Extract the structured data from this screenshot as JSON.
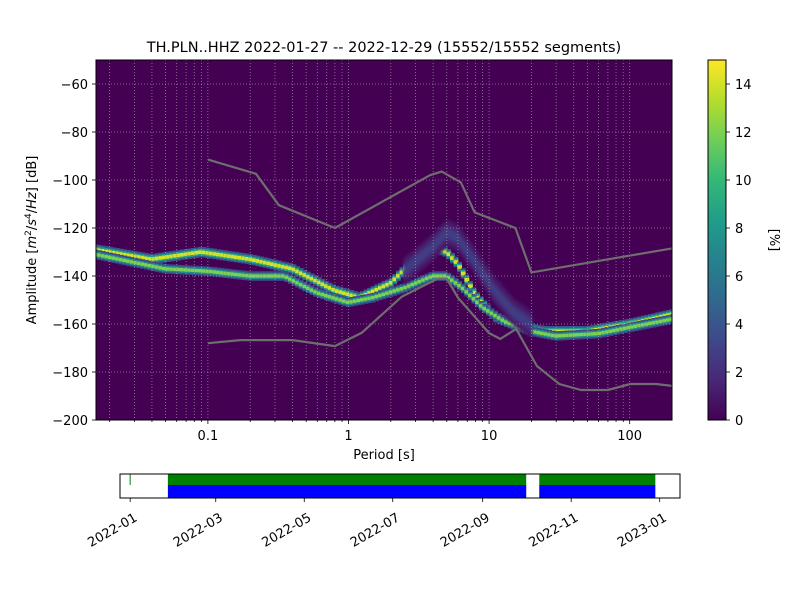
{
  "chart_data": {
    "type": "heatmap",
    "title": "TH.PLN..HHZ   2022-01-27 -- 2022-12-29  (15552/15552 segments)",
    "xlabel": "Period [s]",
    "ylabel_parts": [
      "Amplitude [",
      "m",
      "2",
      "/",
      "s",
      "4",
      "/",
      "Hz",
      "] [dB]"
    ],
    "x_scale": "log",
    "xlim": [
      0.016,
      200
    ],
    "ylim": [
      -200,
      -50
    ],
    "x_ticks": [
      {
        "v": 0.1,
        "label": "0.1"
      },
      {
        "v": 1,
        "label": "1"
      },
      {
        "v": 10,
        "label": "10"
      },
      {
        "v": 100,
        "label": "100"
      }
    ],
    "y_ticks": [
      {
        "v": -60,
        "label": "−60"
      },
      {
        "v": -80,
        "label": "−80"
      },
      {
        "v": -100,
        "label": "−100"
      },
      {
        "v": -120,
        "label": "−120"
      },
      {
        "v": -140,
        "label": "−140"
      },
      {
        "v": -160,
        "label": "−160"
      },
      {
        "v": -180,
        "label": "−180"
      },
      {
        "v": -200,
        "label": "−200"
      }
    ],
    "grid": true,
    "background_color": "#440154",
    "noise_model_color": "#6e6e6e",
    "colorbar": {
      "label": "[%]",
      "range": [
        0,
        15
      ],
      "ticks": [
        {
          "v": 0,
          "label": "0"
        },
        {
          "v": 2,
          "label": "2"
        },
        {
          "v": 4,
          "label": "4"
        },
        {
          "v": 6,
          "label": "6"
        },
        {
          "v": 8,
          "label": "8"
        },
        {
          "v": 10,
          "label": "10"
        },
        {
          "v": 12,
          "label": "12"
        },
        {
          "v": 14,
          "label": "14"
        }
      ],
      "colors": [
        "#440154",
        "#482878",
        "#3e4989",
        "#31688e",
        "#26828e",
        "#1f9e89",
        "#35b779",
        "#6ece58",
        "#b5de2b",
        "#fde725"
      ]
    },
    "high_noise_model": [
      [
        0.1,
        -91.5
      ],
      [
        0.22,
        -97.4
      ],
      [
        0.32,
        -110.5
      ],
      [
        0.8,
        -120
      ],
      [
        3.8,
        -98
      ],
      [
        4.6,
        -96.5
      ],
      [
        6.3,
        -101
      ],
      [
        7.9,
        -113.5
      ],
      [
        15.4,
        -120
      ],
      [
        20,
        -138.5
      ],
      [
        200,
        -128.5
      ]
    ],
    "low_noise_model": [
      [
        0.1,
        -168
      ],
      [
        0.17,
        -166.7
      ],
      [
        0.4,
        -166.7
      ],
      [
        0.8,
        -169.2
      ],
      [
        1.24,
        -163.7
      ],
      [
        2.4,
        -148.6
      ],
      [
        4.3,
        -141.1
      ],
      [
        5,
        -141.1
      ],
      [
        6,
        -149
      ],
      [
        10,
        -163.8
      ],
      [
        12,
        -166.2
      ],
      [
        15.6,
        -162.1
      ],
      [
        21.9,
        -177.5
      ],
      [
        31.6,
        -185
      ],
      [
        45,
        -187.5
      ],
      [
        70,
        -187.5
      ],
      [
        101,
        -185
      ],
      [
        154,
        -185
      ],
      [
        200,
        -185.8
      ]
    ],
    "modes": [
      {
        "name": "upper",
        "points": [
          [
            0.016,
            -129
          ],
          [
            0.04,
            -133
          ],
          [
            0.09,
            -130
          ],
          [
            0.2,
            -133
          ],
          [
            0.4,
            -137
          ],
          [
            0.8,
            -146
          ],
          [
            1.2,
            -149
          ],
          [
            2,
            -143
          ],
          [
            3,
            -133
          ],
          [
            4,
            -128
          ],
          [
            5,
            -130
          ],
          [
            6,
            -135
          ],
          [
            8,
            -148
          ],
          [
            11,
            -157
          ],
          [
            16,
            -161
          ],
          [
            25,
            -163
          ],
          [
            50,
            -163
          ],
          [
            100,
            -160
          ],
          [
            200,
            -156
          ]
        ],
        "width": 5.5,
        "intensity": 14
      },
      {
        "name": "lower",
        "points": [
          [
            0.016,
            -131
          ],
          [
            0.05,
            -137
          ],
          [
            0.1,
            -138
          ],
          [
            0.2,
            -140
          ],
          [
            0.35,
            -140
          ],
          [
            0.6,
            -147
          ],
          [
            1,
            -151
          ],
          [
            1.5,
            -149
          ],
          [
            2.5,
            -145
          ],
          [
            4,
            -140
          ],
          [
            5,
            -140
          ],
          [
            6.5,
            -145
          ],
          [
            9,
            -153
          ],
          [
            13,
            -159
          ],
          [
            20,
            -163
          ],
          [
            30,
            -165
          ],
          [
            60,
            -164
          ],
          [
            200,
            -158
          ]
        ],
        "width": 5,
        "intensity": 12
      },
      {
        "name": "diffuse",
        "points": [
          [
            2.5,
            -138
          ],
          [
            4,
            -128
          ],
          [
            5,
            -122
          ],
          [
            6,
            -124
          ],
          [
            8,
            -134
          ],
          [
            11,
            -146
          ],
          [
            15,
            -155
          ],
          [
            20,
            -160
          ]
        ],
        "width": 14,
        "intensity": 3
      }
    ],
    "timeline": {
      "x_ticks": [
        {
          "v": "2022-01-01",
          "label": "2022-01"
        },
        {
          "v": "2022-03-01",
          "label": "2022-03"
        },
        {
          "v": "2022-05-01",
          "label": "2022-05"
        },
        {
          "v": "2022-07-01",
          "label": "2022-07"
        },
        {
          "v": "2022-09-01",
          "label": "2022-09"
        },
        {
          "v": "2022-11-01",
          "label": "2022-11"
        },
        {
          "v": "2023-01-01",
          "label": "2023-01"
        }
      ],
      "xlim": [
        "2021-12-25",
        "2023-01-15"
      ],
      "data_color": "#0000ff",
      "processed_color": "#008000",
      "segments": [
        [
          "2022-01-27",
          "2022-10-01"
        ],
        [
          "2022-10-10",
          "2022-12-29"
        ]
      ],
      "marker": "2022-01-01"
    }
  }
}
